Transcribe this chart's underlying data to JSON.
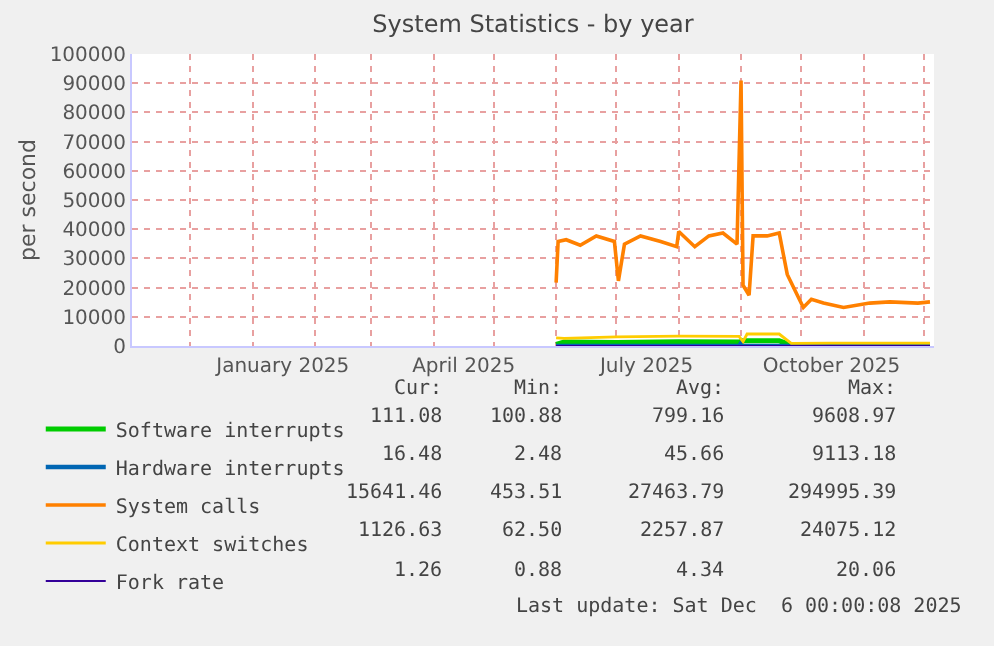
{
  "chart_data": {
    "type": "line",
    "title": "System Statistics - by year",
    "ylabel": "per second",
    "xlim": [
      "2024-11-02",
      "2025-12-06"
    ],
    "ylim": [
      0,
      100000
    ],
    "yticks": [
      0,
      10000,
      20000,
      30000,
      40000,
      50000,
      60000,
      70000,
      80000,
      90000,
      100000
    ],
    "xticks": [
      {
        "value": "2025-01-16",
        "label": "January 2025"
      },
      {
        "value": "2025-04-16",
        "label": "April 2025"
      },
      {
        "value": "2025-07-16",
        "label": "July 2025"
      },
      {
        "value": "2025-10-16",
        "label": "October 2025"
      }
    ],
    "grid": true,
    "legend": "bottom",
    "marker": "none",
    "line_style": "solid",
    "series": [
      {
        "name": "Software interrupts",
        "color": "#00cc00",
        "x": [
          "2025-06-01",
          "2025-06-05",
          "2025-07-01",
          "2025-08-01",
          "2025-08-31",
          "2025-09-02",
          "2025-09-20",
          "2025-09-26",
          "2025-10-15",
          "2025-12-04"
        ],
        "values": [
          500,
          1300,
          1200,
          1400,
          1300,
          1800,
          1800,
          300,
          300,
          300
        ]
      },
      {
        "name": "Hardware interrupts",
        "color": "#0066b3",
        "x": [
          "2025-06-01",
          "2025-08-31",
          "2025-09-01",
          "2025-09-02",
          "2025-12-04"
        ],
        "values": [
          0,
          0,
          1000,
          0,
          0
        ]
      },
      {
        "name": "System calls",
        "color": "#ff8000",
        "x": [
          "2025-06-01",
          "2025-06-02",
          "2025-06-06",
          "2025-06-13",
          "2025-06-21",
          "2025-06-30",
          "2025-07-02",
          "2025-07-05",
          "2025-07-13",
          "2025-07-23",
          "2025-07-31",
          "2025-08-01",
          "2025-08-09",
          "2025-08-16",
          "2025-08-23",
          "2025-08-30",
          "2025-09-01",
          "2025-09-02",
          "2025-09-05",
          "2025-09-07",
          "2025-09-14",
          "2025-09-20",
          "2025-09-24",
          "2025-09-30",
          "2025-10-02",
          "2025-10-06",
          "2025-10-12",
          "2025-10-22",
          "2025-11-04",
          "2025-11-14",
          "2025-11-28",
          "2025-12-04"
        ],
        "values": [
          21700,
          35800,
          36400,
          34500,
          37700,
          35800,
          22300,
          34900,
          37700,
          35800,
          34000,
          39200,
          34000,
          37700,
          38700,
          34900,
          90900,
          20800,
          17400,
          37700,
          37700,
          38700,
          24500,
          16000,
          13200,
          16000,
          14700,
          13200,
          14700,
          15100,
          14700,
          15100
        ]
      },
      {
        "name": "Context switches",
        "color": "#ffcc00",
        "x": [
          "2025-06-01",
          "2025-06-05",
          "2025-07-01",
          "2025-08-01",
          "2025-08-31",
          "2025-09-02",
          "2025-09-04",
          "2025-09-20",
          "2025-09-26",
          "2025-10-15",
          "2025-12-04"
        ],
        "values": [
          2800,
          2600,
          3100,
          3400,
          3300,
          1500,
          4100,
          4100,
          900,
          1000,
          1000
        ]
      },
      {
        "name": "Fork rate",
        "color": "#330099",
        "x": [
          "2025-06-01",
          "2025-12-04"
        ],
        "values": [
          0,
          0
        ]
      }
    ],
    "annotations": [
      "Cur:",
      "Min:",
      "Avg:",
      "Max:",
      "111.08",
      "100.88",
      "799.16",
      "9608.97",
      "16.48",
      "2.48",
      "45.66",
      "9113.18",
      "15641.46",
      "453.51",
      "27463.79",
      "294995.39",
      "1126.63",
      "62.50",
      "2257.87",
      "24075.12",
      "1.26",
      "0.88",
      "4.34",
      "20.06",
      "Last update: Sat Dec  6 00:00:08 2025"
    ]
  }
}
